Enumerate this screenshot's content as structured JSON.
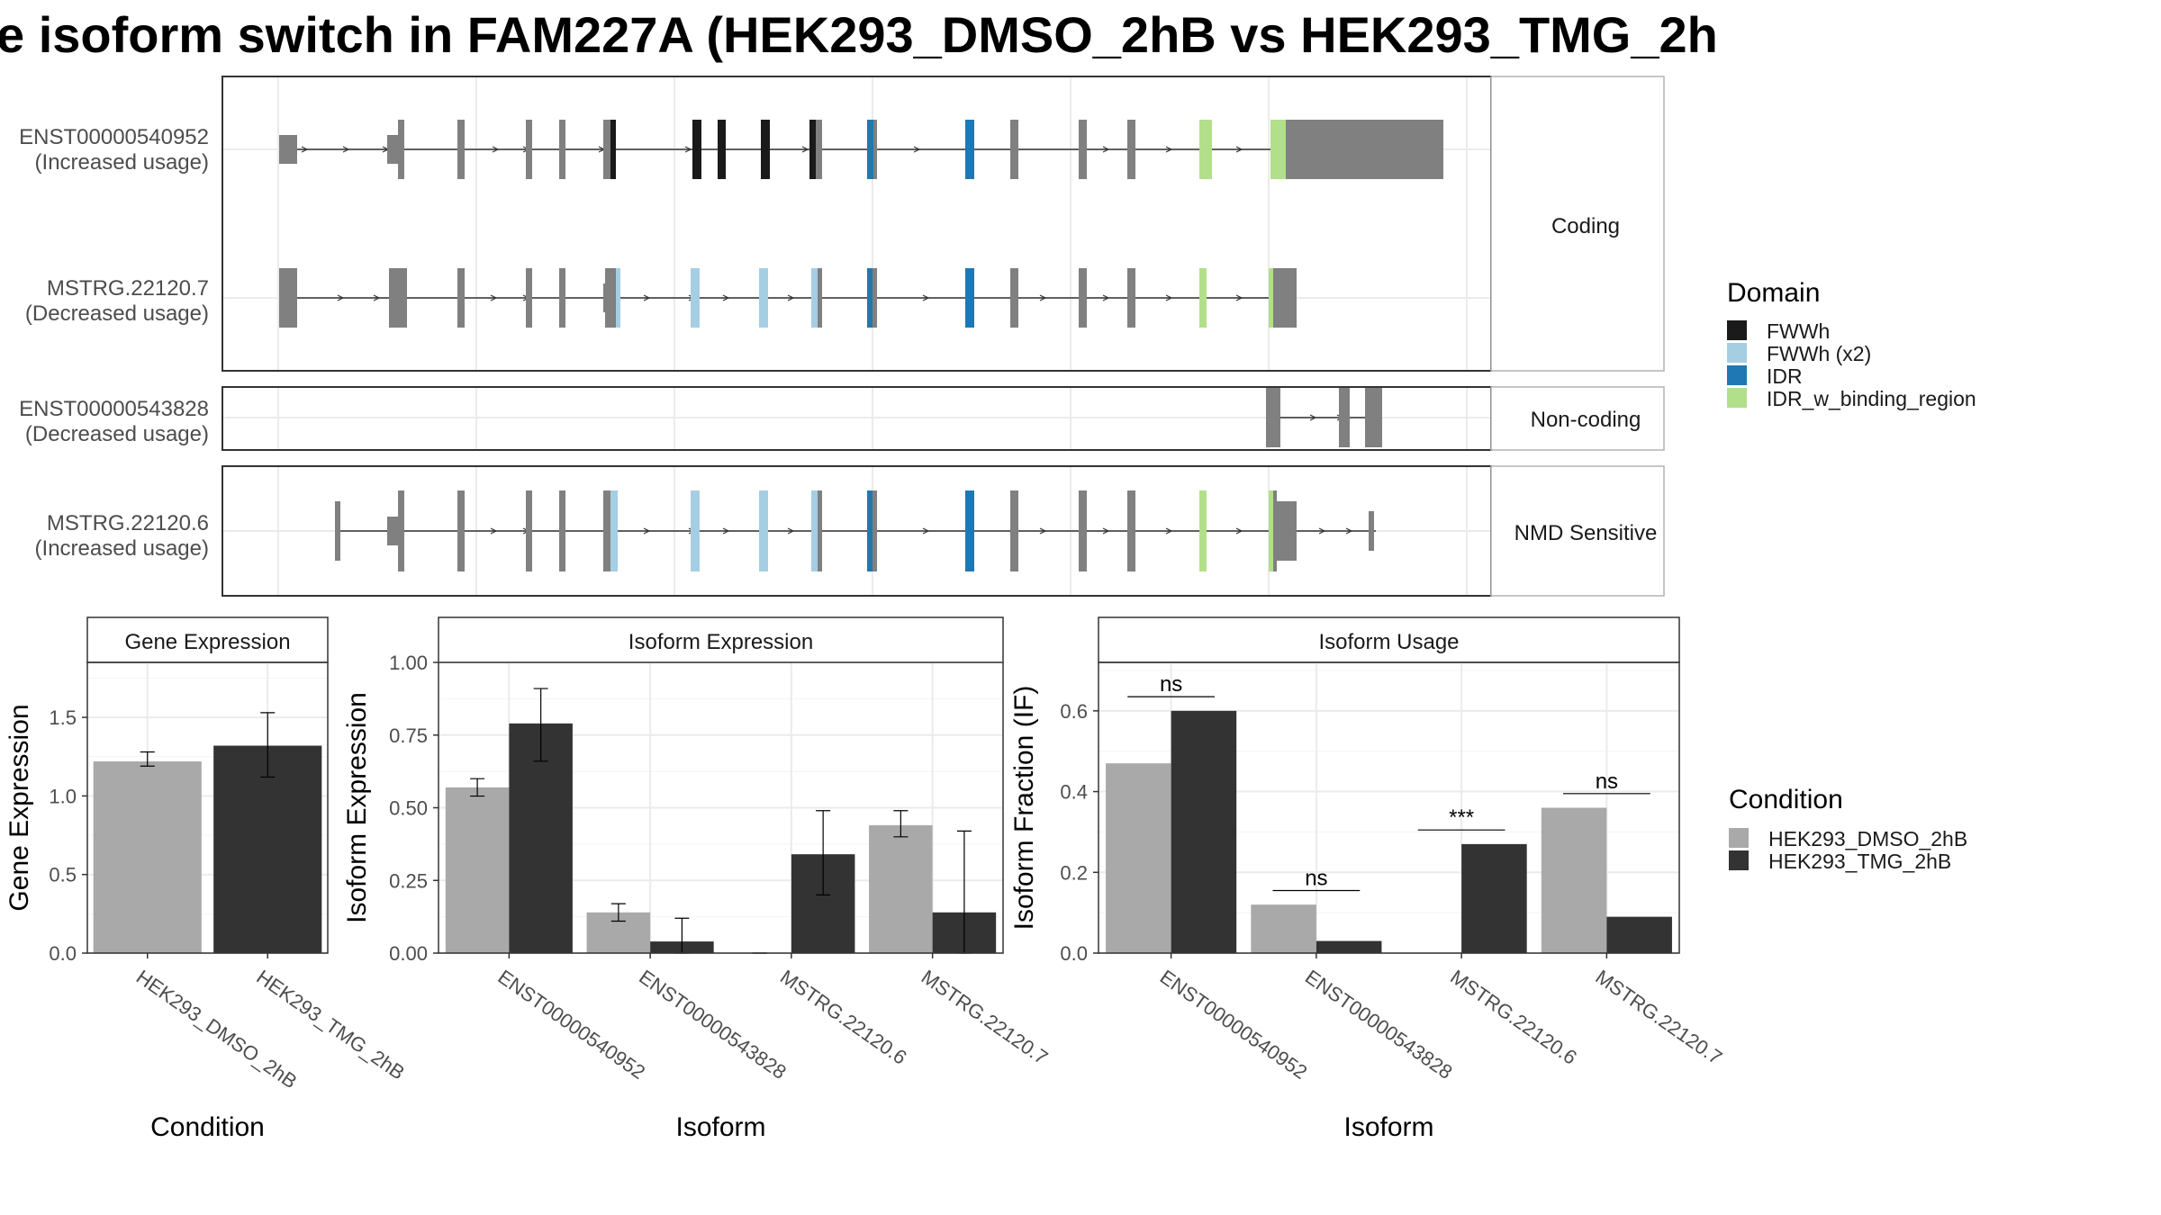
{
  "title": "e isoform switch in FAM227A (HEK293_DMSO_2hB vs HEK293_TMG_2h",
  "colors": {
    "exon": "#808080",
    "FWWh": "#1a1a1a",
    "FWWh (x2)": "#a6cee3",
    "IDR": "#1f78b4",
    "IDR_w_binding_region": "#b2df8a",
    "HEK293_DMSO_2hB": "#a9a9a9",
    "HEK293_TMG_2hB": "#333333",
    "grid": "#ebebeb",
    "frame": "#333333"
  },
  "structure": {
    "facets": [
      {
        "label": "Coding",
        "transcripts": [
          {
            "name": "ENST00000540952",
            "usage": "(Increased usage)"
          },
          {
            "name": "MSTRG.22120.7",
            "usage": "(Decreased usage)"
          }
        ]
      },
      {
        "label": "Non-coding",
        "transcripts": [
          {
            "name": "ENST00000543828",
            "usage": "(Decreased usage)"
          }
        ]
      },
      {
        "label": "NMD Sensitive",
        "transcripts": [
          {
            "name": "MSTRG.22120.6",
            "usage": "(Increased usage)"
          }
        ]
      }
    ]
  },
  "legends": {
    "domain": {
      "title": "Domain",
      "items": [
        "FWWh",
        "FWWh (x2)",
        "IDR",
        "IDR_w_binding_region"
      ]
    },
    "condition": {
      "title": "Condition",
      "items": [
        "HEK293_DMSO_2hB",
        "HEK293_TMG_2hB"
      ]
    }
  },
  "chart_data": [
    {
      "type": "bar",
      "strip": "Gene Expression",
      "xlabel": "Condition",
      "ylabel": "Gene Expression",
      "ylim": [
        0,
        1.85
      ],
      "yticks": [
        "0.0",
        "0.5",
        "1.0",
        "1.5"
      ],
      "categories": [
        "HEK293_DMSO_2hB",
        "HEK293_TMG_2hB"
      ],
      "values": [
        1.22,
        1.32
      ],
      "err_low": [
        1.19,
        1.12
      ],
      "err_high": [
        1.28,
        1.53
      ]
    },
    {
      "type": "bar",
      "strip": "Isoform Expression",
      "xlabel": "Isoform",
      "ylabel": "Isoform Expression",
      "ylim": [
        0,
        1.0
      ],
      "yticks": [
        "0.00",
        "0.25",
        "0.50",
        "0.75",
        "1.00"
      ],
      "categories": [
        "ENST00000540952",
        "ENST00000543828",
        "MSTRG.22120.6",
        "MSTRG.22120.7"
      ],
      "series": [
        {
          "name": "HEK293_DMSO_2hB",
          "values": [
            0.57,
            0.14,
            0.0,
            0.44
          ],
          "err_low": [
            0.54,
            0.11,
            0.0,
            0.4
          ],
          "err_high": [
            0.6,
            0.17,
            0.0,
            0.49
          ]
        },
        {
          "name": "HEK293_TMG_2hB",
          "values": [
            0.79,
            0.04,
            0.34,
            0.14
          ],
          "err_low": [
            0.66,
            0.0,
            0.2,
            0.0
          ],
          "err_high": [
            0.91,
            0.12,
            0.49,
            0.42
          ]
        }
      ]
    },
    {
      "type": "bar",
      "strip": "Isoform Usage",
      "xlabel": "Isoform",
      "ylabel": "Isoform Fraction (IF)",
      "ylim": [
        0,
        0.72
      ],
      "yticks": [
        "0.0",
        "0.2",
        "0.4",
        "0.6"
      ],
      "categories": [
        "ENST00000540952",
        "ENST00000543828",
        "MSTRG.22120.6",
        "MSTRG.22120.7"
      ],
      "series": [
        {
          "name": "HEK293_DMSO_2hB",
          "values": [
            0.47,
            0.12,
            0.0,
            0.36
          ]
        },
        {
          "name": "HEK293_TMG_2hB",
          "values": [
            0.6,
            0.03,
            0.27,
            0.09
          ]
        }
      ],
      "significance": [
        "ns",
        "ns",
        "***",
        "ns"
      ]
    }
  ]
}
